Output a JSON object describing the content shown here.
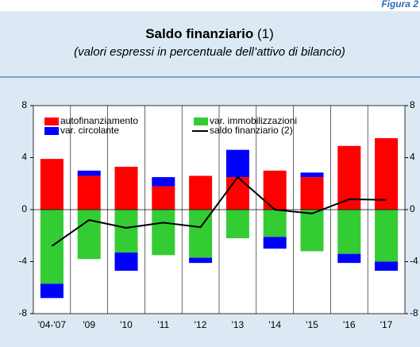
{
  "figure_label": "Figura 2",
  "chart_data": {
    "type": "bar",
    "title": "Saldo finanziario",
    "title_note": "(1)",
    "subtitle": "(valori espressi in percentuale dell’attivo di bilancio)",
    "categories": [
      "'04-'07",
      "'09",
      "'10",
      "'11",
      "'12",
      "'13",
      "'14",
      "'15",
      "'16",
      "'17"
    ],
    "series": [
      {
        "name": "autofinanziamento",
        "color": "#ff0000",
        "values": [
          3.9,
          2.6,
          3.3,
          1.8,
          2.6,
          2.5,
          3.0,
          2.5,
          4.9,
          5.5
        ]
      },
      {
        "name": "var. immobilizzazioni",
        "color": "#33cc33",
        "values": [
          -5.7,
          -3.8,
          -3.3,
          -3.5,
          -3.7,
          -2.2,
          -2.1,
          -3.2,
          -3.4,
          -4.0
        ]
      },
      {
        "name": "var. circolante",
        "color": "#0000ff",
        "values": [
          -1.1,
          0.4,
          -1.4,
          0.7,
          -0.4,
          2.1,
          -0.9,
          0.35,
          -0.7,
          -0.7
        ]
      },
      {
        "name": "saldo finanziario (2)",
        "type": "line",
        "color": "#000000",
        "values": [
          -2.8,
          -0.8,
          -1.4,
          -1.0,
          -1.35,
          2.5,
          0,
          -0.3,
          0.8,
          0.75
        ]
      }
    ],
    "stacked": true,
    "ylim": [
      -8,
      8
    ],
    "yticks": [
      -8,
      -4,
      0,
      4,
      8
    ],
    "y2lim": [
      -8,
      8
    ],
    "y2ticks": [
      -8,
      -4,
      0,
      4,
      8
    ],
    "grid": true,
    "legend": "top-left"
  }
}
